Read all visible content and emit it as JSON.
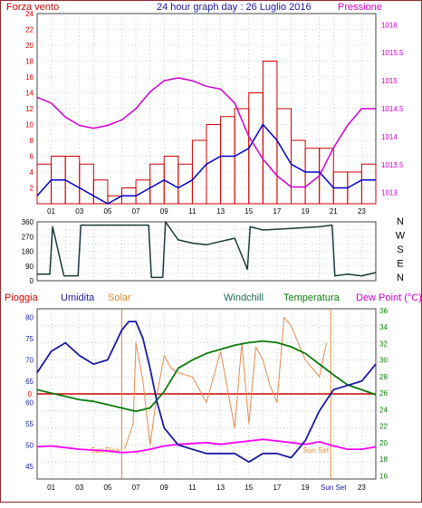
{
  "top": {
    "left_label": "Forza vento",
    "title": "24 hour graph day : 26 Luglio 2016",
    "right_label": "Pressione",
    "colors": {
      "left": "#cc0000",
      "title": "#1a1aa0",
      "right": "#cc00cc"
    }
  },
  "x_ticks": [
    "01",
    "03",
    "05",
    "07",
    "09",
    "11",
    "13",
    "15",
    "17",
    "19",
    "21",
    "23"
  ],
  "mid_dir_labels": [
    "N",
    "W",
    "S",
    "E",
    "N"
  ],
  "bottom": {
    "labels": {
      "rain": "Pioggia",
      "humidity": "Umidita",
      "solar": "Solar",
      "windchill": "Windchill",
      "temperature": "Temperatura",
      "dewpoint": "Dew Point (°C)"
    },
    "colors": {
      "rain": "#cc0000",
      "humidity": "#1a1aa0",
      "solar": "#d88a2a",
      "windchill": "#1a6a5a",
      "temperature": "#0a7a0a",
      "dewpoint": "#cc00cc"
    },
    "sun_rise_label": "Sun Rise",
    "sun_set_label": "Sun Set",
    "sunset_tick": "Sun Set"
  },
  "chart_data": [
    {
      "type": "line",
      "panel": "wind-speed-and-pressure",
      "x_unit": "hour",
      "left_axis": {
        "ticks": [
          2,
          4,
          6,
          8,
          10,
          12,
          14,
          16,
          18,
          20,
          22,
          24
        ],
        "range": [
          0,
          24
        ]
      },
      "right_axis": {
        "ticks": [
          1013,
          1013.5,
          1014,
          1014.5,
          1015,
          1015.5,
          1016
        ],
        "range": [
          1012.8,
          1016.2
        ]
      },
      "series": [
        {
          "color": "#cc0000",
          "style": "bars",
          "x": [
            0,
            1,
            2,
            3,
            4,
            5,
            6,
            7,
            8,
            9,
            10,
            11,
            12,
            13,
            14,
            15,
            16,
            17,
            18,
            19,
            20,
            21,
            22,
            23,
            24
          ],
          "values": [
            5,
            6,
            6,
            5,
            3,
            1,
            2,
            3,
            5,
            6,
            5,
            8,
            10,
            11,
            12,
            14,
            18,
            12,
            8,
            7,
            7,
            4,
            4,
            5,
            5
          ]
        },
        {
          "color": "#0000cc",
          "x": [
            0,
            1,
            2,
            3,
            4,
            5,
            6,
            7,
            8,
            9,
            10,
            11,
            12,
            13,
            14,
            15,
            16,
            17,
            18,
            19,
            20,
            21,
            22,
            23,
            24
          ],
          "values": [
            1,
            3,
            3,
            2,
            1,
            0,
            1,
            1,
            2,
            3,
            2,
            3,
            5,
            6,
            6,
            7,
            10,
            8,
            5,
            4,
            4,
            2,
            2,
            3,
            3
          ]
        },
        {
          "color": "#cc00cc",
          "x": [
            0,
            1,
            2,
            3,
            4,
            5,
            6,
            7,
            8,
            9,
            10,
            11,
            12,
            13,
            14,
            15,
            16,
            17,
            18,
            19,
            20,
            21,
            22,
            23,
            24
          ],
          "values": [
            1014.7,
            1014.6,
            1014.35,
            1014.2,
            1014.15,
            1014.2,
            1014.3,
            1014.5,
            1014.8,
            1015,
            1015.05,
            1015,
            1014.9,
            1014.85,
            1014.6,
            1014,
            1013.6,
            1013.3,
            1013.1,
            1013.1,
            1013.3,
            1013.8,
            1014.2,
            1014.5,
            1014.5
          ]
        }
      ]
    },
    {
      "type": "line",
      "panel": "wind-direction",
      "x_unit": "hour",
      "y_axis": {
        "ticks": [
          0,
          45,
          90,
          135,
          180,
          225,
          270,
          315,
          360
        ],
        "range": [
          0,
          360
        ]
      },
      "series": [
        {
          "color": "#1a3a3a",
          "x": [
            0,
            0.9,
            1.1,
            1.9,
            2.1,
            2.9,
            3.1,
            5,
            6,
            7.9,
            8.1,
            8.9,
            9.1,
            10,
            11,
            12,
            13,
            14,
            14.9,
            15.1,
            16,
            18,
            20,
            20.9,
            21.1,
            22,
            23,
            24
          ],
          "values": [
            40,
            40,
            330,
            30,
            30,
            30,
            340,
            340,
            340,
            340,
            20,
            20,
            360,
            250,
            230,
            220,
            240,
            260,
            70,
            330,
            310,
            320,
            330,
            340,
            30,
            40,
            30,
            50
          ]
        }
      ]
    },
    {
      "type": "line",
      "panel": "temperature-humidity",
      "x_unit": "hour",
      "left_axis": {
        "label": "Umidita",
        "ticks": [
          45,
          50,
          55,
          60,
          65,
          70,
          75,
          80
        ],
        "range": [
          42,
          82
        ]
      },
      "right_axis": {
        "ticks": [
          16,
          18,
          20,
          22,
          24,
          26,
          28,
          30,
          32,
          34,
          36
        ],
        "range": [
          15.6,
          36.2
        ]
      },
      "series": [
        {
          "name": "Umidita",
          "color": "#1a1aa0",
          "axis": "left",
          "x": [
            0,
            1,
            2,
            3,
            4,
            5,
            6,
            6.5,
            7,
            7.5,
            8,
            8.5,
            9,
            10,
            11,
            12,
            13,
            14,
            15,
            16,
            17,
            18,
            19,
            20,
            21,
            22,
            23,
            24
          ],
          "values": [
            67,
            72,
            74,
            71,
            69,
            70,
            77,
            79,
            79,
            75,
            68,
            60,
            54,
            50,
            49,
            48,
            48,
            48,
            46,
            48,
            48,
            47,
            51,
            58,
            63,
            64,
            65,
            69
          ]
        },
        {
          "name": "Temperatura",
          "color": "#0a7a0a",
          "axis": "right",
          "x": [
            0,
            1,
            2,
            3,
            4,
            5,
            6,
            7,
            8,
            9,
            10,
            11,
            12,
            13,
            14,
            15,
            16,
            17,
            18,
            19,
            20,
            21,
            22,
            23,
            24
          ],
          "values": [
            26.4,
            26,
            25.6,
            25.2,
            25,
            24.6,
            24.2,
            23.8,
            24.2,
            26.2,
            29,
            30,
            30.8,
            31.3,
            31.8,
            32.1,
            32.3,
            32.1,
            31.6,
            30.8,
            29.5,
            28.2,
            27,
            26.4,
            25.8
          ]
        },
        {
          "name": "Solar",
          "color": "#e28a4a",
          "axis": "left",
          "x": [
            0,
            6.2,
            6.8,
            7,
            7.5,
            8,
            8.5,
            9,
            9.5,
            10,
            11,
            12,
            13,
            14,
            14.5,
            15,
            15.5,
            16,
            16.5,
            17,
            17.5,
            18,
            19,
            20,
            20.5,
            21,
            24
          ],
          "values": [
            null,
            49,
            55,
            74,
            65,
            50,
            62,
            71,
            68,
            67,
            66,
            60,
            72,
            54,
            74,
            55,
            73,
            70,
            64,
            60,
            80,
            78,
            70,
            66,
            74,
            null,
            null
          ]
        },
        {
          "name": "Dew Point",
          "color": "#ff00ff",
          "axis": "right",
          "x": [
            0,
            1,
            2,
            3,
            4,
            5,
            6,
            7,
            8,
            9,
            10,
            11,
            12,
            13,
            14,
            15,
            16,
            17,
            18,
            19,
            20,
            21,
            22,
            23,
            24
          ],
          "values": [
            19.5,
            19.6,
            19.4,
            19.2,
            19.1,
            19,
            18.8,
            18.9,
            19.2,
            19.6,
            19.8,
            19.9,
            20,
            19.8,
            20,
            20.2,
            20.4,
            20.2,
            20,
            19.8,
            20.1,
            19.6,
            19.2,
            19.2,
            19.5
          ]
        }
      ]
    }
  ]
}
